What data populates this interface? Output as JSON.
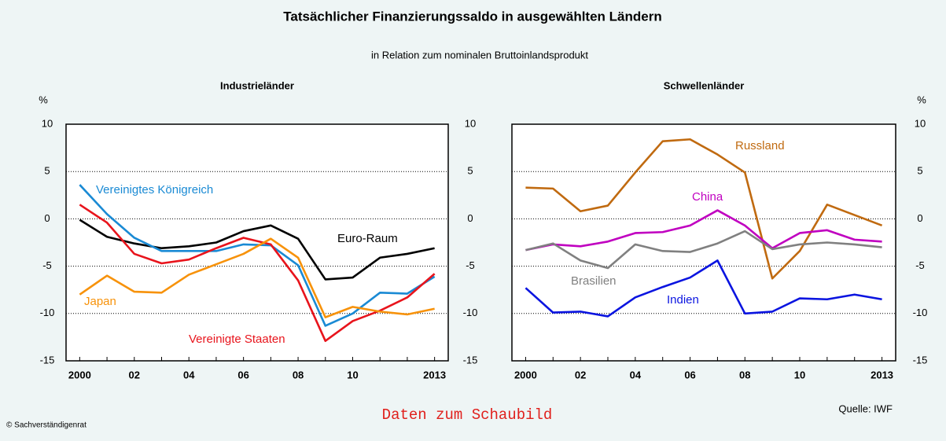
{
  "title": "Tatsächlicher Finanzierungssaldo in ausgewählten Ländern",
  "subtitle": "in Relation zum nominalen Bruttoinlandsprodukt",
  "source": "Quelle: IWF",
  "copyright": "© Sachverständigenrat",
  "link": "Daten zum Schaubild",
  "chart_data": [
    {
      "type": "line",
      "title": "Industrieländer",
      "ylabel": "%",
      "x": [
        2000,
        2001,
        2002,
        2003,
        2004,
        2005,
        2006,
        2007,
        2008,
        2009,
        2010,
        2011,
        2012,
        2013
      ],
      "xlim": [
        1999.5,
        2013.5
      ],
      "xticks": [
        2000,
        {
          "value": 2002,
          "label": "02"
        },
        {
          "value": 2004,
          "label": "04"
        },
        {
          "value": 2006,
          "label": "06"
        },
        {
          "value": 2008,
          "label": "08"
        },
        {
          "value": 2010,
          "label": "10"
        },
        2013
      ],
      "ylim": [
        -15,
        10
      ],
      "yticks": [
        10,
        5,
        0,
        -5,
        -10,
        -15
      ],
      "grid": true,
      "series": [
        {
          "name": "Euro-Raum",
          "color": "#000000",
          "values": [
            -0.1,
            -1.9,
            -2.6,
            -3.1,
            -2.9,
            -2.5,
            -1.3,
            -0.7,
            -2.1,
            -6.4,
            -6.2,
            -4.1,
            -3.7,
            -3.1
          ]
        },
        {
          "name": "Vereinigtes Königreich",
          "color": "#1a8ad4",
          "values": [
            3.6,
            0.5,
            -2.0,
            -3.4,
            -3.4,
            -3.4,
            -2.7,
            -2.8,
            -4.9,
            -11.3,
            -10.0,
            -7.8,
            -7.9,
            -6.1
          ]
        },
        {
          "name": "Vereinigte Staaten",
          "color": "#e8141c",
          "values": [
            1.5,
            -0.4,
            -3.7,
            -4.7,
            -4.3,
            -3.1,
            -2.0,
            -2.7,
            -6.5,
            -12.9,
            -10.8,
            -9.7,
            -8.3,
            -5.8
          ]
        },
        {
          "name": "Japan",
          "color": "#f7920a",
          "values": [
            -8.0,
            -6.0,
            -7.7,
            -7.8,
            -5.9,
            -4.8,
            -3.7,
            -2.1,
            -4.1,
            -10.4,
            -9.3,
            -9.8,
            -10.1,
            -9.5
          ]
        }
      ]
    },
    {
      "type": "line",
      "title": "Schwellenländer",
      "ylabel": "%",
      "x": [
        2000,
        2001,
        2002,
        2003,
        2004,
        2005,
        2006,
        2007,
        2008,
        2009,
        2010,
        2011,
        2012,
        2013
      ],
      "xlim": [
        1999.5,
        2013.5
      ],
      "xticks": [
        2000,
        {
          "value": 2002,
          "label": "02"
        },
        {
          "value": 2004,
          "label": "04"
        },
        {
          "value": 2006,
          "label": "06"
        },
        {
          "value": 2008,
          "label": "08"
        },
        {
          "value": 2010,
          "label": "10"
        },
        2013
      ],
      "ylim": [
        -15,
        10
      ],
      "yticks": [
        10,
        5,
        0,
        -5,
        -10,
        -15
      ],
      "grid": true,
      "series": [
        {
          "name": "Russland",
          "color": "#c06a10",
          "values": [
            3.3,
            3.2,
            0.8,
            1.4,
            4.9,
            8.2,
            8.4,
            6.8,
            4.9,
            -6.3,
            -3.4,
            1.5,
            0.4,
            -0.7
          ]
        },
        {
          "name": "China",
          "color": "#c000c0",
          "values": [
            -3.3,
            -2.7,
            -2.9,
            -2.4,
            -1.5,
            -1.4,
            -0.7,
            0.9,
            -0.7,
            -3.1,
            -1.5,
            -1.2,
            -2.2,
            -2.4
          ]
        },
        {
          "name": "Brasilien",
          "color": "#808080",
          "values": [
            -3.3,
            -2.6,
            -4.4,
            -5.2,
            -2.7,
            -3.4,
            -3.5,
            -2.6,
            -1.3,
            -3.2,
            -2.7,
            -2.5,
            -2.7,
            -3.0
          ]
        },
        {
          "name": "Indien",
          "color": "#0a14e0",
          "values": [
            -7.3,
            -9.9,
            -9.8,
            -10.3,
            -8.3,
            -7.2,
            -6.2,
            -4.4,
            -10.0,
            -9.8,
            -8.4,
            -8.5,
            -8.0,
            -8.5
          ]
        }
      ]
    }
  ]
}
